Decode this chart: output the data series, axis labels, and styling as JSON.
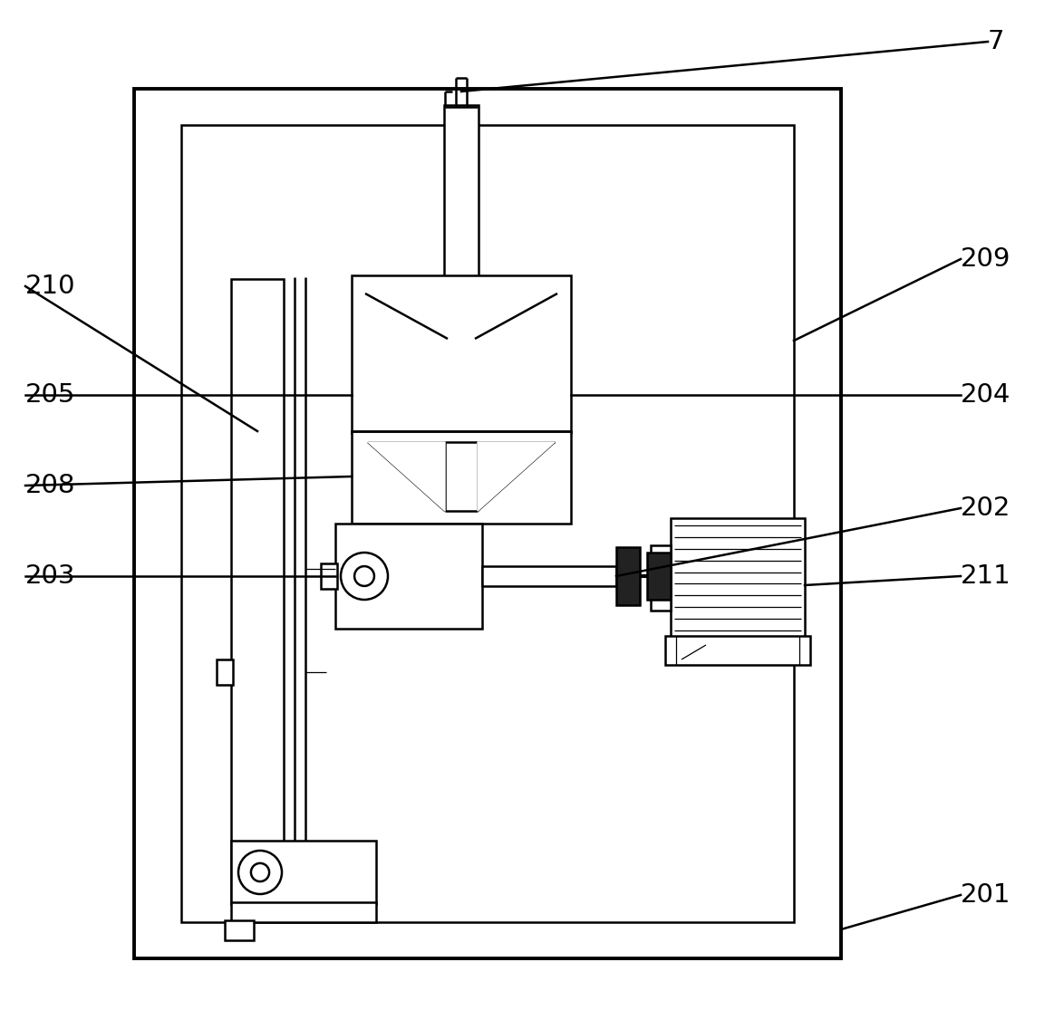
{
  "bg_color": "#ffffff",
  "line_color": "#000000",
  "lw": 1.8,
  "lw_thick": 2.8,
  "lw_thin": 0.9,
  "fig_width": 11.63,
  "fig_height": 11.26,
  "label_fontsize": 21
}
